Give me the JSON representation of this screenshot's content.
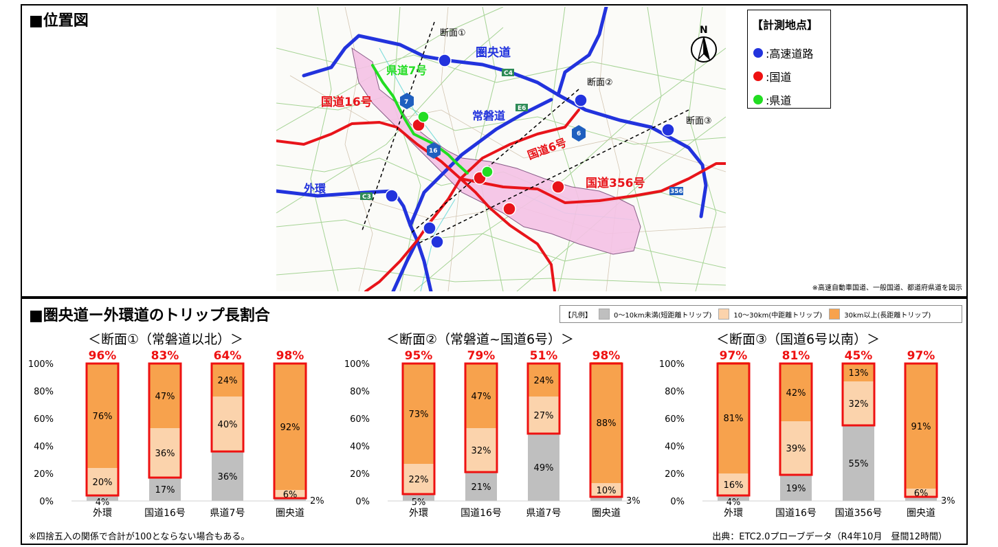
{
  "map": {
    "title": "■位置図",
    "legend": {
      "title": "【計測地点】",
      "items": [
        {
          "label": ":高速道路",
          "color": "#2233dd"
        },
        {
          "label": ":国道",
          "color": "#ee1111"
        },
        {
          "label": ":県道",
          "color": "#22dd22"
        }
      ]
    },
    "north_label": "N",
    "route_labels": {
      "ken_o": "圏央道",
      "joban": "常磐道",
      "gaikan": "外環",
      "r16": "国道16号",
      "r6": "国道6号",
      "r356": "国道356号",
      "pref7": "県道7号"
    },
    "section_labels": [
      "断面①",
      "断面②",
      "断面③"
    ],
    "road_codes": [
      "C4",
      "E6",
      "C3",
      "7",
      "16",
      "6",
      "356"
    ],
    "note": "※高速自動車国道、一般国道、都道府県道を図示"
  },
  "trip_section": {
    "title": "■圏央道ー外環道のトリップ長割合",
    "legend_prefix": "【凡例】",
    "legend": [
      {
        "label": "0～10km未満(短距離トリップ)",
        "color": "#bfbfbf"
      },
      {
        "label": "10～30km(中距離トリップ)",
        "color": "#fbd3ac"
      },
      {
        "label": "30km以上(長距離トリップ)",
        "color": "#f7a24d"
      }
    ],
    "footnote": "※四捨五入の関係で合計が100とならない場合もある。",
    "source": "出典：ETC2.0プローブデータ（R4年10月　昼間12時間）"
  },
  "colors": {
    "short": "#bfbfbf",
    "mid": "#fbd3ac",
    "long": "#f7a24d",
    "highlight": "#ee1111"
  },
  "chart_data": [
    {
      "type": "bar",
      "stacked": true,
      "title": "＜断面①（常磐道以北）＞",
      "categories": [
        "外環",
        "国道16号",
        "県道7号",
        "圏央道"
      ],
      "series": [
        {
          "name": "0～10km未満(短距離トリップ)",
          "values": [
            4,
            17,
            36,
            2
          ]
        },
        {
          "name": "10～30km(中距離トリップ)",
          "values": [
            20,
            36,
            40,
            6
          ]
        },
        {
          "name": "30km以上(長距離トリップ)",
          "values": [
            76,
            47,
            24,
            92
          ]
        }
      ],
      "top_labels": [
        "96%",
        "83%",
        "64%",
        "98%"
      ],
      "ylim": [
        0,
        100
      ],
      "yticks": [
        "0%",
        "20%",
        "40%",
        "60%",
        "80%",
        "100%"
      ]
    },
    {
      "type": "bar",
      "stacked": true,
      "title": "＜断面②（常磐道~国道6号）＞",
      "categories": [
        "外環",
        "国道16号",
        "県道7号",
        "圏央道"
      ],
      "series": [
        {
          "name": "0～10km未満(短距離トリップ)",
          "values": [
            5,
            21,
            49,
            3
          ]
        },
        {
          "name": "10～30km(中距離トリップ)",
          "values": [
            22,
            32,
            27,
            10
          ]
        },
        {
          "name": "30km以上(長距離トリップ)",
          "values": [
            73,
            47,
            24,
            88
          ]
        }
      ],
      "top_labels": [
        "95%",
        "79%",
        "51%",
        "98%"
      ],
      "ylim": [
        0,
        100
      ],
      "yticks": [
        "0%",
        "20%",
        "40%",
        "60%",
        "80%",
        "100%"
      ]
    },
    {
      "type": "bar",
      "stacked": true,
      "title": "＜断面③（国道6号以南）＞",
      "categories": [
        "外環",
        "国道16号",
        "国道356号",
        "圏央道"
      ],
      "series": [
        {
          "name": "0～10km未満(短距離トリップ)",
          "values": [
            4,
            19,
            55,
            3
          ]
        },
        {
          "name": "10～30km(中距離トリップ)",
          "values": [
            16,
            39,
            32,
            6
          ]
        },
        {
          "name": "30km以上(長距離トリップ)",
          "values": [
            81,
            42,
            13,
            91
          ]
        }
      ],
      "top_labels": [
        "97%",
        "81%",
        "45%",
        "97%"
      ],
      "ylim": [
        0,
        100
      ],
      "yticks": [
        "0%",
        "20%",
        "40%",
        "60%",
        "80%",
        "100%"
      ]
    }
  ]
}
